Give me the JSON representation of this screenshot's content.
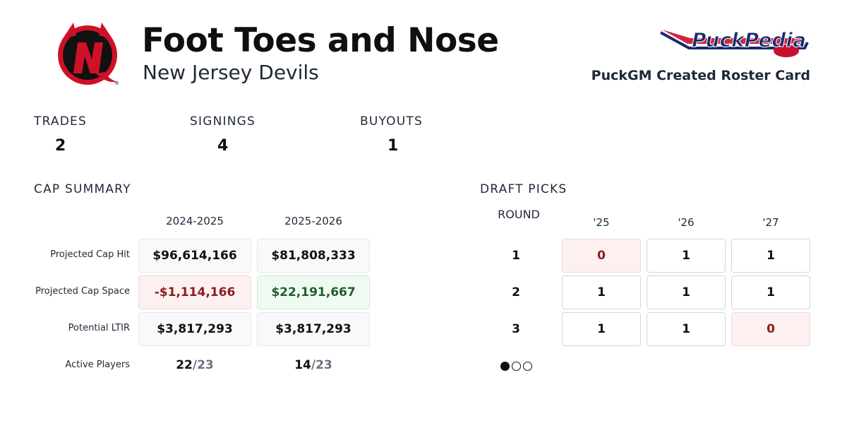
{
  "header": {
    "gm_name": "Foot Toes and Nose",
    "team": "New Jersey Devils",
    "brand_name": "PuckPedia",
    "caption": "PuckGM Created Roster Card"
  },
  "stats": [
    {
      "label": "TRADES",
      "value": "2"
    },
    {
      "label": "SIGNINGS",
      "value": "4"
    },
    {
      "label": "BUYOUTS",
      "value": "1"
    }
  ],
  "cap_summary": {
    "title": "CAP SUMMARY",
    "seasons": [
      "2024-2025",
      "2025-2026"
    ],
    "rows": [
      {
        "label": "Projected Cap Hit",
        "values": [
          "$96,614,166",
          "$81,808,333"
        ]
      },
      {
        "label": "Projected Cap Space",
        "values": [
          "-$1,114,166",
          "$22,191,667"
        ]
      },
      {
        "label": "Potential LTIR",
        "values": [
          "$3,817,293",
          "$3,817,293"
        ]
      }
    ],
    "active_players": {
      "label": "Active Players",
      "values": [
        {
          "count": "22",
          "max": "/23"
        },
        {
          "count": "14",
          "max": "/23"
        }
      ]
    }
  },
  "draft_picks": {
    "title": "DRAFT PICKS",
    "round_label": "ROUND",
    "years": [
      "'25",
      "'26",
      "'27"
    ],
    "rounds": [
      {
        "round": "1",
        "picks": [
          "0",
          "1",
          "1"
        ]
      },
      {
        "round": "2",
        "picks": [
          "1",
          "1",
          "1"
        ]
      },
      {
        "round": "3",
        "picks": [
          "1",
          "1",
          "0"
        ]
      }
    ]
  },
  "pagination": {
    "pages": 3,
    "current": 1
  },
  "colors": {
    "devils_red": "#ce1126",
    "negative": "#8b1c1c",
    "positive": "#1f5f2c",
    "brand_navy": "#1b2a6b"
  }
}
